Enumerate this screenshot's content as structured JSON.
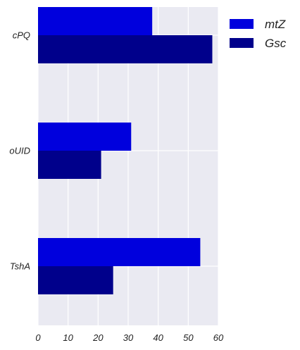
{
  "chart_data": {
    "type": "bar",
    "orientation": "horizontal",
    "categories": [
      "cPQ",
      "oUID",
      "TshA"
    ],
    "series": [
      {
        "name": "mtZ",
        "values": [
          38,
          31,
          54
        ],
        "color": "#0000dd"
      },
      {
        "name": "Gsc",
        "values": [
          58,
          21,
          25
        ],
        "color": "#00008b"
      }
    ],
    "x_ticks": [
      0,
      10,
      20,
      30,
      40,
      50,
      60
    ],
    "xlim": [
      0,
      60
    ],
    "xlabel": "",
    "ylabel": "",
    "title": "",
    "grid": true,
    "background": "#eaeaf2",
    "grid_color": "#ffffff",
    "legend": {
      "placement": "outside-right-top"
    }
  }
}
